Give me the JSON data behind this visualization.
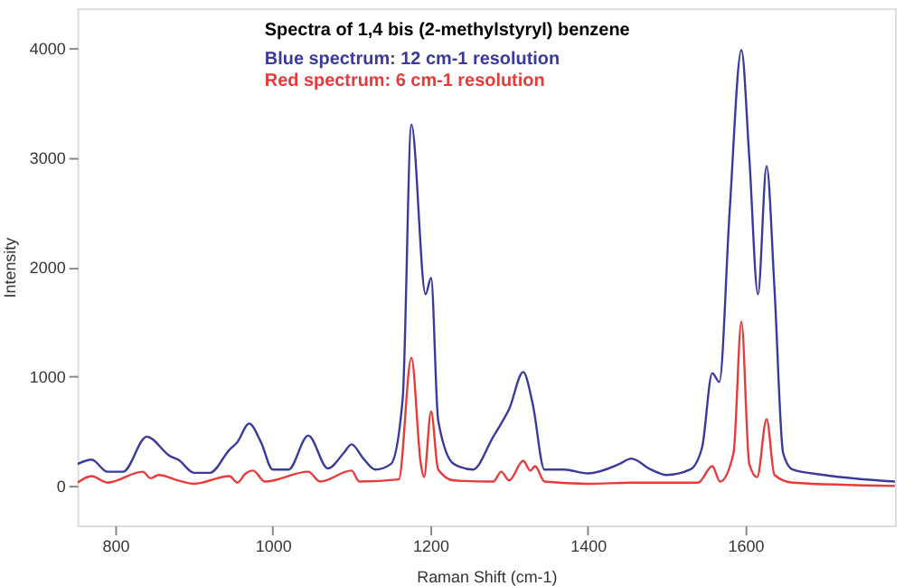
{
  "chart_data": {
    "type": "line",
    "title": "Spectra of 1,4 bis (2-methylstyryl) benzene",
    "xlabel": "Raman Shift (cm-1)",
    "ylabel": "Intensity",
    "xlim": [
      752,
      1790
    ],
    "ylim": [
      -360,
      4360
    ],
    "xticks": [
      800,
      1000,
      1200,
      1400,
      1600
    ],
    "yticks": [
      0,
      1000,
      2000,
      3000,
      4000
    ],
    "grid": false,
    "marker": "none",
    "line_style": "solid",
    "series": [
      {
        "name": "Blue spectrum: 12 cm-1 resolution",
        "color": "#3a3a9c",
        "x": [
          752,
          770,
          790,
          810,
          840,
          870,
          880,
          900,
          920,
          945,
          955,
          970,
          985,
          1000,
          1020,
          1045,
          1070,
          1090,
          1100,
          1115,
          1130,
          1150,
          1165,
          1176,
          1194,
          1201,
          1210,
          1230,
          1254,
          1280,
          1290,
          1300,
          1318,
          1330,
          1345,
          1370,
          1400,
          1440,
          1455,
          1480,
          1500,
          1530,
          1545,
          1558,
          1567,
          1580,
          1595,
          1605,
          1616,
          1627,
          1637,
          1648,
          1660,
          1700,
          1790
        ],
        "values": [
          200,
          240,
          130,
          130,
          450,
          270,
          240,
          120,
          120,
          330,
          400,
          570,
          400,
          150,
          150,
          460,
          160,
          300,
          380,
          250,
          150,
          200,
          800,
          3300,
          1750,
          1900,
          600,
          200,
          150,
          450,
          570,
          700,
          1040,
          750,
          150,
          150,
          115,
          200,
          250,
          150,
          100,
          150,
          350,
          1030,
          950,
          2500,
          3980,
          3000,
          1750,
          2920,
          1800,
          300,
          150,
          100,
          40
        ]
      },
      {
        "name": "Red spectrum: 6 cm-1 resolution",
        "color": "#e83a3a",
        "x": [
          752,
          770,
          790,
          835,
          845,
          855,
          880,
          900,
          945,
          955,
          965,
          975,
          990,
          1045,
          1060,
          1100,
          1110,
          1160,
          1176,
          1188,
          1192,
          1201,
          1210,
          1230,
          1280,
          1290,
          1300,
          1318,
          1327,
          1333,
          1345,
          1400,
          1455,
          1540,
          1558,
          1568,
          1585,
          1595,
          1605,
          1615,
          1627,
          1637,
          1660,
          1790
        ],
        "values": [
          30,
          90,
          30,
          130,
          70,
          100,
          50,
          20,
          90,
          30,
          110,
          140,
          40,
          130,
          40,
          140,
          40,
          60,
          1170,
          200,
          80,
          680,
          150,
          50,
          40,
          130,
          50,
          230,
          140,
          180,
          40,
          20,
          30,
          30,
          180,
          40,
          300,
          1500,
          200,
          80,
          610,
          100,
          30,
          0
        ]
      }
    ]
  }
}
